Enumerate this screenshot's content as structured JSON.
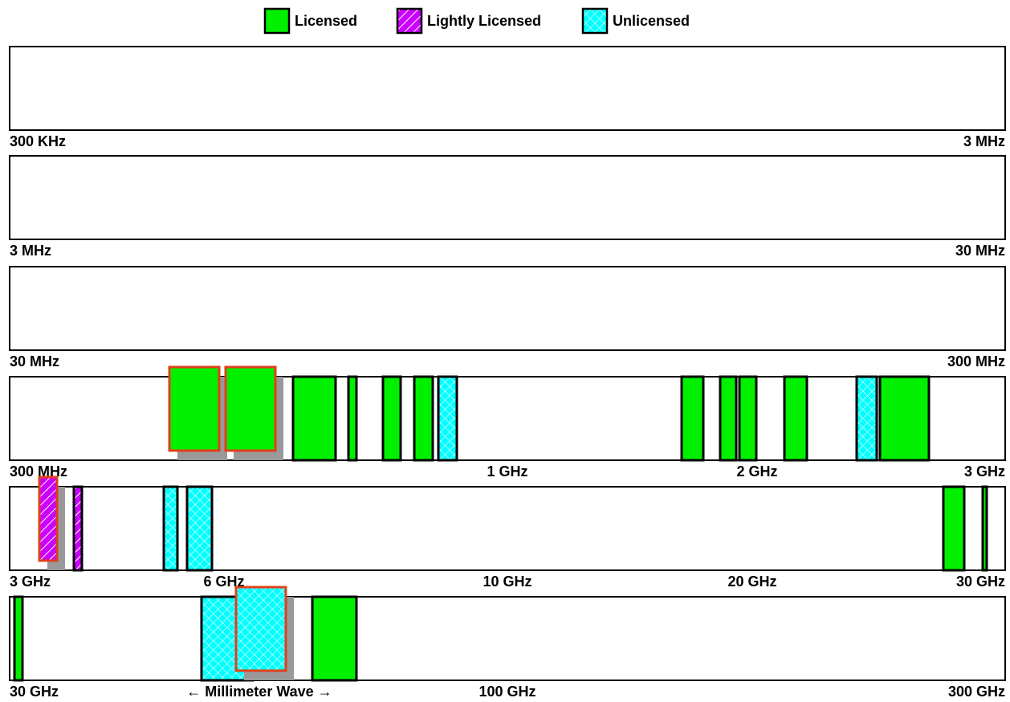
{
  "legend": [
    {
      "type": "licensed",
      "label": "Licensed"
    },
    {
      "type": "lightly",
      "label": "Lightly Licensed"
    },
    {
      "type": "unlicensed",
      "label": "Unlicensed"
    }
  ],
  "colors": {
    "licensed": "#00f000",
    "lightly": "#cc00ff",
    "unlicensed": "#00ffff",
    "highlight": "#e0401a",
    "shadow": "#999999"
  },
  "xlim": [
    0,
    1240
  ],
  "rows": [
    {
      "ticks": [
        {
          "value": 0,
          "label": "300 KHz"
        },
        {
          "value": 1240,
          "label": "3 MHz"
        }
      ],
      "bands": []
    },
    {
      "ticks": [
        {
          "value": 0,
          "label": "3 MHz"
        },
        {
          "value": 1240,
          "label": "30 MHz"
        }
      ],
      "bands": []
    },
    {
      "ticks": [
        {
          "value": 0,
          "label": "30 MHz"
        },
        {
          "value": 1240,
          "label": "300 MHz"
        }
      ],
      "bands": []
    },
    {
      "ticks": [
        {
          "value": 0,
          "label": "300 MHz"
        },
        {
          "value": 620,
          "label": "1 GHz"
        },
        {
          "value": 931,
          "label": "2 GHz"
        },
        {
          "value": 1240,
          "label": "3 GHz"
        }
      ],
      "bands": [
        {
          "type": "licensed",
          "start": 209,
          "end": 271,
          "highlight": true
        },
        {
          "type": "licensed",
          "start": 279,
          "end": 341,
          "highlight": true
        },
        {
          "type": "licensed",
          "start": 353,
          "end": 406
        },
        {
          "type": "licensed",
          "start": 422,
          "end": 432
        },
        {
          "type": "licensed",
          "start": 465,
          "end": 487
        },
        {
          "type": "licensed",
          "start": 504,
          "end": 527
        },
        {
          "type": "unlicensed",
          "start": 534,
          "end": 557
        },
        {
          "type": "licensed",
          "start": 837,
          "end": 864
        },
        {
          "type": "licensed",
          "start": 885,
          "end": 905
        },
        {
          "type": "licensed",
          "start": 909,
          "end": 930
        },
        {
          "type": "licensed",
          "start": 965,
          "end": 993
        },
        {
          "type": "unlicensed",
          "start": 1055,
          "end": 1080
        },
        {
          "type": "licensed",
          "start": 1084,
          "end": 1145
        }
      ]
    },
    {
      "ticks": [
        {
          "value": 0,
          "label": "3 GHz"
        },
        {
          "value": 267,
          "label": "6 GHz"
        },
        {
          "value": 620,
          "label": "10 GHz"
        },
        {
          "value": 925,
          "label": "20 GHz"
        },
        {
          "value": 1240,
          "label": "30 GHz"
        }
      ],
      "bands": [
        {
          "type": "lightly",
          "start": 47,
          "end": 69,
          "highlight": true
        },
        {
          "type": "lightly",
          "start": 80,
          "end": 90
        },
        {
          "type": "unlicensed",
          "start": 192,
          "end": 209
        },
        {
          "type": "unlicensed",
          "start": 221,
          "end": 252
        },
        {
          "type": "licensed",
          "start": 1163,
          "end": 1189
        },
        {
          "type": "licensed",
          "start": 1212,
          "end": 1217
        }
      ]
    },
    {
      "ticks": [
        {
          "value": 0,
          "label": "30 GHz"
        },
        {
          "value": 311,
          "label": "← Millimeter Wave →"
        },
        {
          "value": 620,
          "label": "100 GHz"
        },
        {
          "value": 1240,
          "label": "300 GHz"
        }
      ],
      "bands": [
        {
          "type": "licensed",
          "start": 6,
          "end": 16
        },
        {
          "type": "unlicensed",
          "start": 239,
          "end": 303
        },
        {
          "type": "unlicensed",
          "start": 292,
          "end": 354,
          "highlight": true
        },
        {
          "type": "licensed",
          "start": 377,
          "end": 432
        }
      ]
    }
  ]
}
